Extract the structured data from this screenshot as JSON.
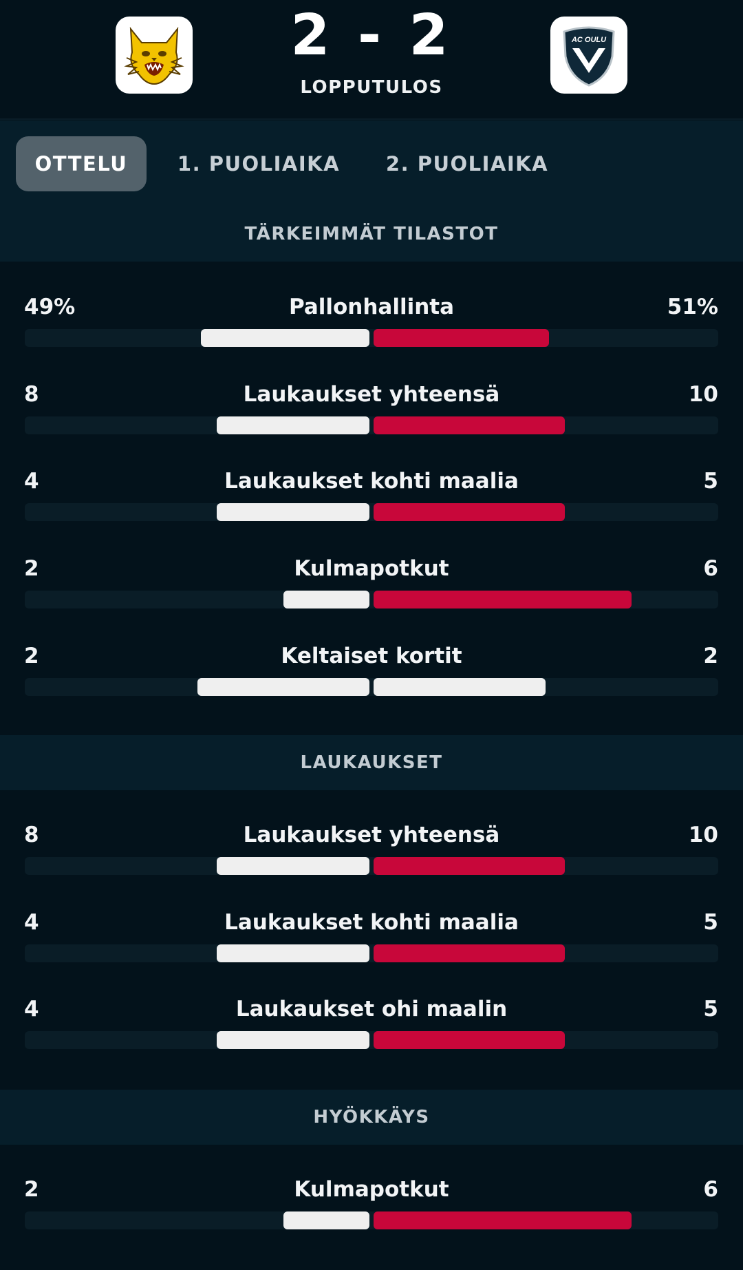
{
  "match": {
    "home_team_logo": "ilves-lynx-logo",
    "away_team_logo": "ac-oulu-logo",
    "away_logo_text": "AC OULU",
    "score": "2 - 2",
    "status": "LOPPUTULOS"
  },
  "tabs": [
    {
      "label": "OTTELU",
      "active": true
    },
    {
      "label": "1. PUOLIAIKA",
      "active": false
    },
    {
      "label": "2. PUOLIAIKA",
      "active": false
    }
  ],
  "colors": {
    "home_bar": "#efefef",
    "away_bar": "#c8073a",
    "track": "#0a1d27",
    "background": "#03121b",
    "section_bg": "#061e2a"
  },
  "sections": [
    {
      "title": "TÄRKEIMMÄT TILASTOT",
      "stats": [
        {
          "label": "Pallonhallinta",
          "home": "49%",
          "away": "51%",
          "home_value": 49,
          "away_value": 51,
          "home_color": "#efefef",
          "away_color": "#c8073a"
        },
        {
          "label": "Laukaukset yhteensä",
          "home": "8",
          "away": "10",
          "home_value": 8,
          "away_value": 10,
          "home_color": "#efefef",
          "away_color": "#c8073a"
        },
        {
          "label": "Laukaukset kohti maalia",
          "home": "4",
          "away": "5",
          "home_value": 4,
          "away_value": 5,
          "home_color": "#efefef",
          "away_color": "#c8073a"
        },
        {
          "label": "Kulmapotkut",
          "home": "2",
          "away": "6",
          "home_value": 2,
          "away_value": 6,
          "home_color": "#efefef",
          "away_color": "#c8073a"
        },
        {
          "label": "Keltaiset kortit",
          "home": "2",
          "away": "2",
          "home_value": 2,
          "away_value": 2,
          "home_color": "#efefef",
          "away_color": "#efefef"
        }
      ]
    },
    {
      "title": "LAUKAUKSET",
      "stats": [
        {
          "label": "Laukaukset yhteensä",
          "home": "8",
          "away": "10",
          "home_value": 8,
          "away_value": 10,
          "home_color": "#efefef",
          "away_color": "#c8073a"
        },
        {
          "label": "Laukaukset kohti maalia",
          "home": "4",
          "away": "5",
          "home_value": 4,
          "away_value": 5,
          "home_color": "#efefef",
          "away_color": "#c8073a"
        },
        {
          "label": "Laukaukset ohi maalin",
          "home": "4",
          "away": "5",
          "home_value": 4,
          "away_value": 5,
          "home_color": "#efefef",
          "away_color": "#c8073a"
        }
      ]
    },
    {
      "title": "HYÖKKÄYS",
      "stats": [
        {
          "label": "Kulmapotkut",
          "home": "2",
          "away": "6",
          "home_value": 2,
          "away_value": 6,
          "home_color": "#efefef",
          "away_color": "#c8073a"
        }
      ]
    }
  ]
}
